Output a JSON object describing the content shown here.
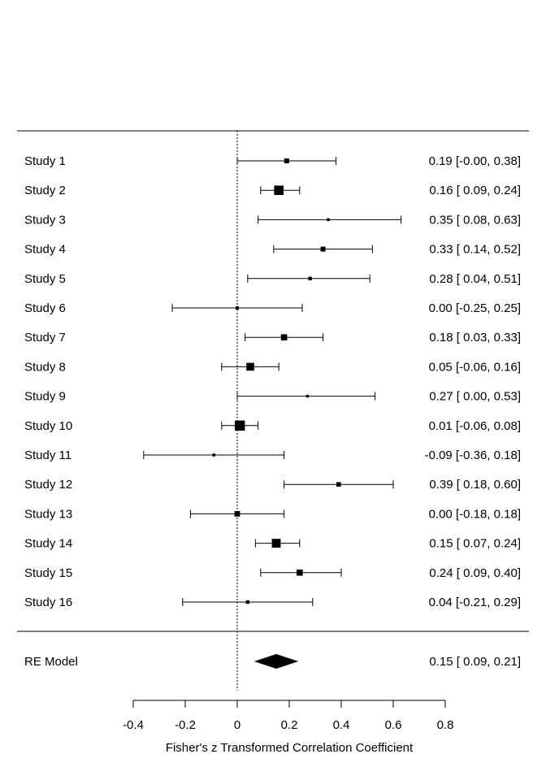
{
  "chart_data": {
    "type": "forest",
    "xlabel": "Fisher's z Transformed Correlation Coefficient",
    "xlim": [
      -0.4,
      0.8
    ],
    "xticks": [
      "-0.4",
      "-0.2",
      "0",
      "0.2",
      "0.4",
      "0.6",
      "0.8"
    ],
    "reference_line": 0,
    "studies": [
      {
        "label": "Study 1",
        "estimate": 0.19,
        "lower": -0.0,
        "upper": 0.38,
        "weight": 1.0,
        "text": "0.19 [-0.00, 0.38]"
      },
      {
        "label": "Study 2",
        "estimate": 0.16,
        "lower": 0.09,
        "upper": 0.24,
        "weight": 2.4,
        "text": "0.16 [ 0.09, 0.24]"
      },
      {
        "label": "Study 3",
        "estimate": 0.35,
        "lower": 0.08,
        "upper": 0.63,
        "weight": 0.4,
        "text": "0.35 [ 0.08, 0.63]"
      },
      {
        "label": "Study 4",
        "estimate": 0.33,
        "lower": 0.14,
        "upper": 0.52,
        "weight": 1.0,
        "text": "0.33 [ 0.14, 0.52]"
      },
      {
        "label": "Study 5",
        "estimate": 0.28,
        "lower": 0.04,
        "upper": 0.51,
        "weight": 0.6,
        "text": "0.28 [ 0.04, 0.51]"
      },
      {
        "label": "Study 6",
        "estimate": 0.0,
        "lower": -0.25,
        "upper": 0.25,
        "weight": 0.5,
        "text": "0.00 [-0.25, 0.25]"
      },
      {
        "label": "Study 7",
        "estimate": 0.18,
        "lower": 0.03,
        "upper": 0.33,
        "weight": 1.4,
        "text": "0.18 [ 0.03, 0.33]"
      },
      {
        "label": "Study 8",
        "estimate": 0.05,
        "lower": -0.06,
        "upper": 0.16,
        "weight": 1.9,
        "text": "0.05 [-0.06, 0.16]"
      },
      {
        "label": "Study 9",
        "estimate": 0.27,
        "lower": 0.0,
        "upper": 0.53,
        "weight": 0.35,
        "text": "0.27 [ 0.00, 0.53]"
      },
      {
        "label": "Study 10",
        "estimate": 0.01,
        "lower": -0.06,
        "upper": 0.08,
        "weight": 2.6,
        "text": "0.01 [-0.06, 0.08]"
      },
      {
        "label": "Study 11",
        "estimate": -0.09,
        "lower": -0.36,
        "upper": 0.18,
        "weight": 0.4,
        "text": "-0.09 [-0.36, 0.18]"
      },
      {
        "label": "Study 12",
        "estimate": 0.39,
        "lower": 0.18,
        "upper": 0.6,
        "weight": 0.9,
        "text": "0.39 [ 0.18, 0.60]"
      },
      {
        "label": "Study 13",
        "estimate": 0.0,
        "lower": -0.18,
        "upper": 0.18,
        "weight": 1.2,
        "text": "0.00 [-0.18, 0.18]"
      },
      {
        "label": "Study 14",
        "estimate": 0.15,
        "lower": 0.07,
        "upper": 0.24,
        "weight": 2.2,
        "text": "0.15 [ 0.07, 0.24]"
      },
      {
        "label": "Study 15",
        "estimate": 0.24,
        "lower": 0.09,
        "upper": 0.4,
        "weight": 1.4,
        "text": "0.24 [ 0.09, 0.40]"
      },
      {
        "label": "Study 16",
        "estimate": 0.04,
        "lower": -0.21,
        "upper": 0.29,
        "weight": 0.6,
        "text": "0.04 [-0.21, 0.29]"
      }
    ],
    "summary": {
      "label": "RE Model",
      "estimate": 0.15,
      "lower": 0.09,
      "upper": 0.21,
      "text": "0.15 [ 0.09, 0.21]"
    }
  }
}
